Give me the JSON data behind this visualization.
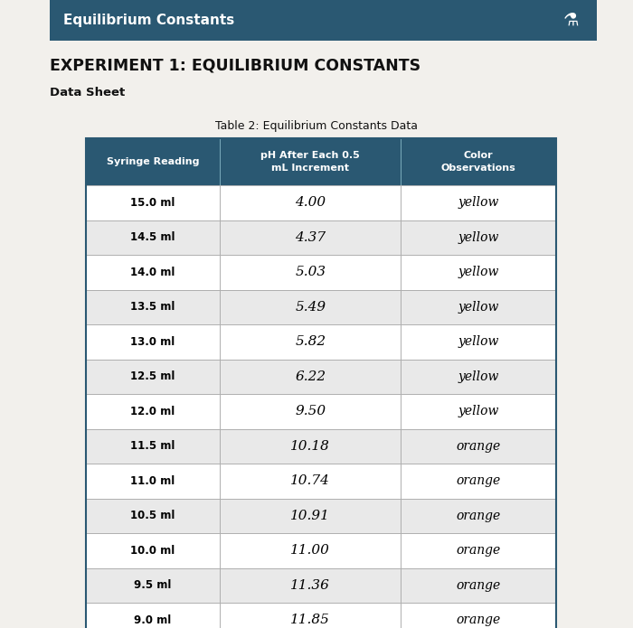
{
  "header_title": "Equilibrium Constants",
  "page_title": "EXPERIMENT 1: EQUILIBRIUM CONSTANTS",
  "sub_title": "Data Sheet",
  "table_title": "Table 2: Equilibrium Constants Data",
  "col_headers": [
    "Syringe Reading",
    "pH After Each 0.5\nmL Increment",
    "Color\nObservations"
  ],
  "rows": [
    [
      "15.0 ml",
      "4.00",
      "yellow"
    ],
    [
      "14.5 ml",
      "4.37",
      "yellow"
    ],
    [
      "14.0 ml",
      "5.03",
      "yellow"
    ],
    [
      "13.5 ml",
      "5.49",
      "yellow"
    ],
    [
      "13.0 ml",
      "5.82",
      "yellow"
    ],
    [
      "12.5 ml",
      "6.22",
      "yellow"
    ],
    [
      "12.0 ml",
      "9.50",
      "yellow"
    ],
    [
      "11.5 ml",
      "10.18",
      "orange"
    ],
    [
      "11.0 ml",
      "10.74",
      "orange"
    ],
    [
      "10.5 ml",
      "10.91",
      "orange"
    ],
    [
      "10.0 ml",
      "11.00",
      "orange"
    ],
    [
      "9.5 ml",
      "11.36",
      "orange"
    ],
    [
      "9.0 ml",
      "11.85",
      "orange"
    ]
  ],
  "header_bg": "#2a5872",
  "header_text_color": "#ffffff",
  "col_header_bg": "#2a5872",
  "col_header_text": "#ffffff",
  "row_bg1": "#ffffff",
  "row_bg2": "#e9e9e9",
  "table_border_color": "#2a5872",
  "outer_bg": "#c8c4bc",
  "paper_bg": "#f2f0ec",
  "fig_width": 7.0,
  "fig_height": 6.95
}
